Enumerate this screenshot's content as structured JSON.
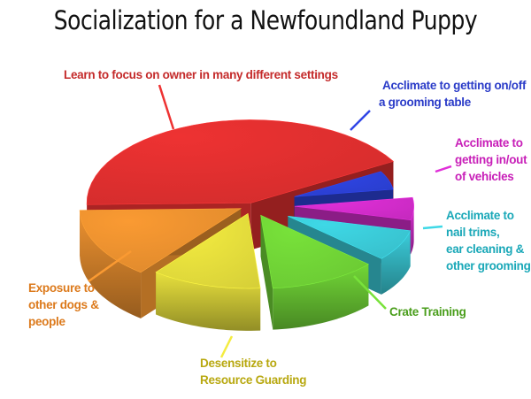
{
  "chart_data": {
    "type": "pie",
    "style": "3d-exploded",
    "title": "Socialization for a Newfoundland Puppy",
    "legend": "none",
    "slices": [
      {
        "label": "Acclimate to getting on/off a grooming table",
        "lines": [
          "Acclimate to getting on/off",
          "a grooming table"
        ],
        "value": 6,
        "color": "#2f45e6",
        "label_color": "#2a3bc8"
      },
      {
        "label": "Acclimate to getting in/out of vehicles",
        "lines": [
          "Acclimate to",
          "getting in/out",
          "of vehicles"
        ],
        "value": 6,
        "color": "#e02fd8",
        "label_color": "#c81fb8"
      },
      {
        "label": "Acclimate to nail trims, ear cleaning & other grooming",
        "lines": [
          "Acclimate to",
          "nail trims,",
          "ear cleaning &",
          "other grooming"
        ],
        "value": 8,
        "color": "#3ed8e6",
        "label_color": "#1aa8b8"
      },
      {
        "label": "Crate Training",
        "lines": [
          "Crate Training"
        ],
        "value": 12,
        "color": "#78e23a",
        "label_color": "#4a9e1c"
      },
      {
        "label": "Desensitize to Resource Guarding",
        "lines": [
          "Desensitize to",
          "Resource Guarding"
        ],
        "value": 12,
        "color": "#f4ec40",
        "label_color": "#b8a810"
      },
      {
        "label": "Exposure to other dogs & people",
        "lines": [
          "Exposure to",
          "other dogs &",
          "people"
        ],
        "value": 14,
        "color": "#fa9a32",
        "label_color": "#dc7a1c"
      },
      {
        "label": "Learn to focus on owner in many different settings",
        "lines": [
          "Learn to focus on owner in many different settings"
        ],
        "value": 42,
        "color": "#ee3232",
        "label_color": "#c42a2a"
      }
    ]
  }
}
